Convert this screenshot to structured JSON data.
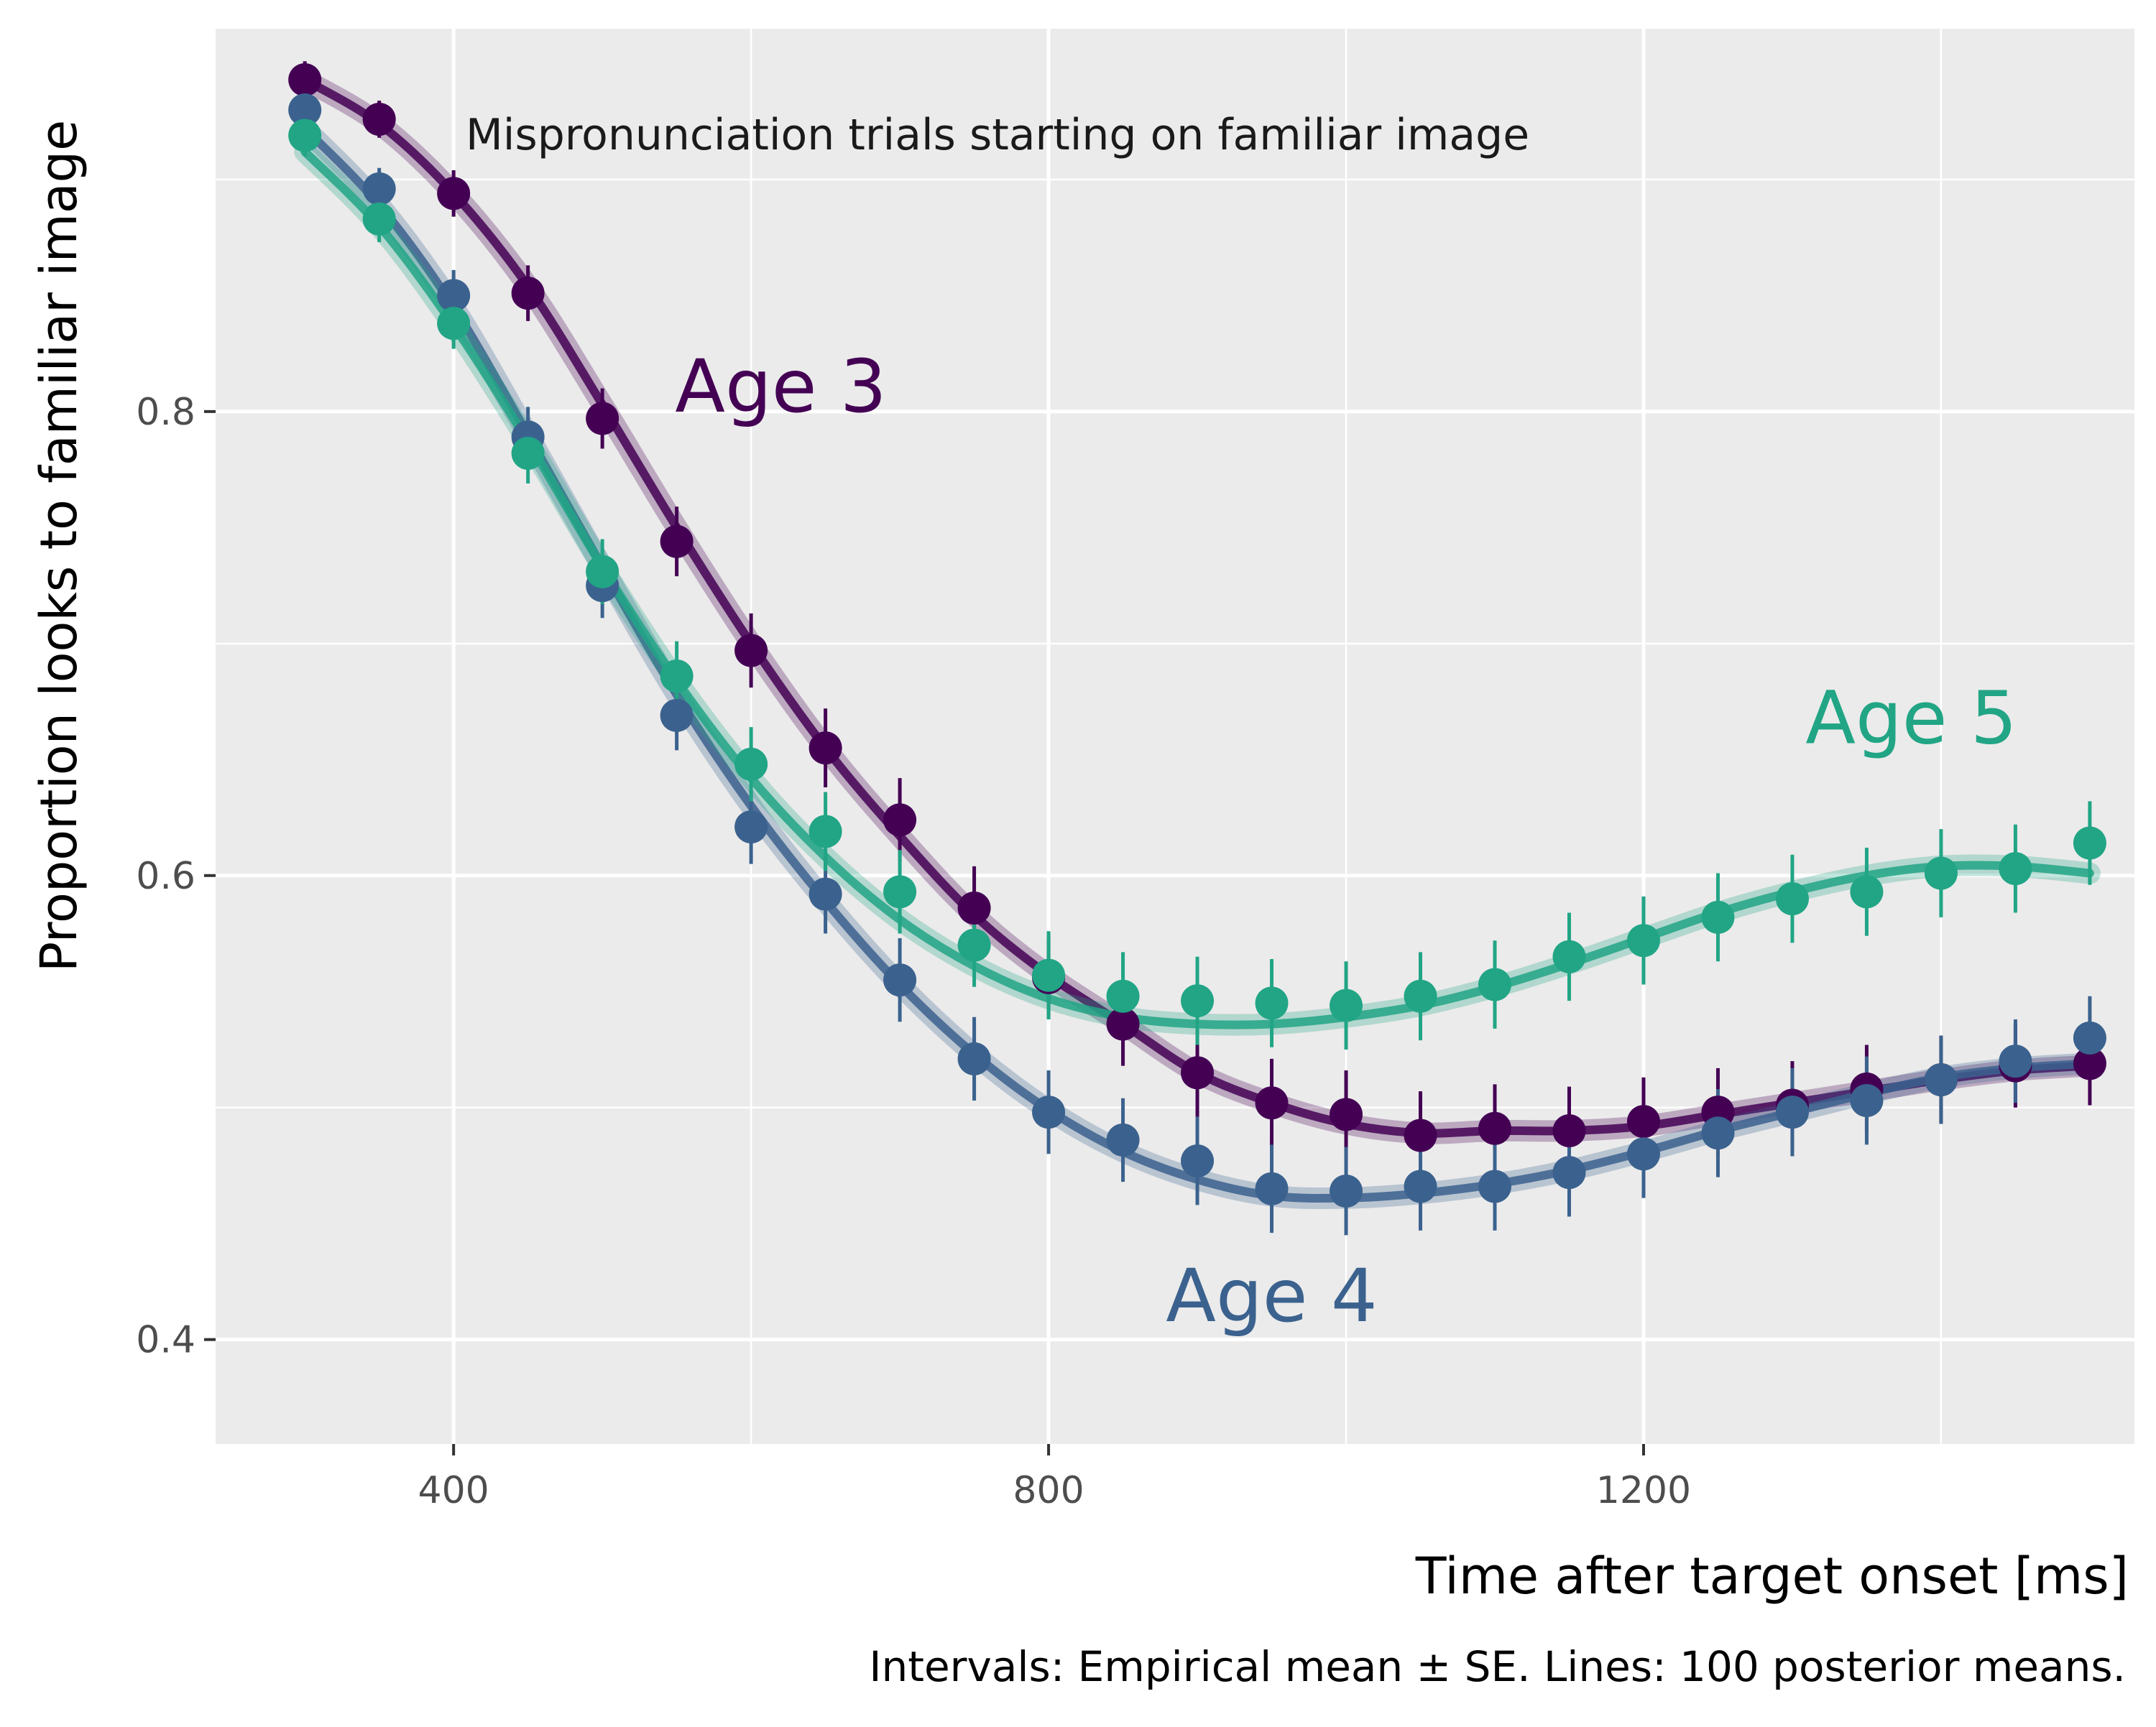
{
  "chart_data": {
    "type": "line",
    "annotation": "Mispronunciation trials starting on familiar image",
    "xlabel": "Time after target onset [ms]",
    "ylabel": "Proportion looks to familiar image",
    "caption": "Intervals: Empirical mean ± SE. Lines: 100 posterior means.",
    "xlim": [
      240,
      1530
    ],
    "ylim": [
      0.355,
      0.965
    ],
    "x_ticks": [
      400,
      800,
      1200
    ],
    "x_tick_labels": [
      "400",
      "800",
      "1200"
    ],
    "y_ticks": [
      0.4,
      0.6,
      0.8
    ],
    "y_tick_labels": [
      "0.4",
      "0.6",
      "0.8"
    ],
    "grid": true,
    "background": "#ebebeb",
    "x": [
      300,
      350,
      400,
      450,
      500,
      550,
      600,
      650,
      700,
      750,
      800,
      850,
      900,
      950,
      1000,
      1050,
      1100,
      1150,
      1200,
      1250,
      1300,
      1350,
      1400,
      1450,
      1500
    ],
    "series": [
      {
        "name": "Age 3",
        "color": "#440154",
        "means": [
          0.943,
          0.926,
          0.894,
          0.851,
          0.797,
          0.744,
          0.697,
          0.655,
          0.624,
          0.586,
          0.556,
          0.536,
          0.515,
          0.502,
          0.497,
          0.488,
          0.491,
          0.49,
          0.494,
          0.498,
          0.501,
          0.508,
          0.512,
          0.518,
          0.519
        ],
        "se": [
          0.008,
          0.008,
          0.01,
          0.012,
          0.013,
          0.015,
          0.016,
          0.017,
          0.018,
          0.018,
          0.017,
          0.018,
          0.019,
          0.019,
          0.019,
          0.019,
          0.019,
          0.019,
          0.019,
          0.019,
          0.019,
          0.019,
          0.019,
          0.018,
          0.018
        ],
        "fit": [
          0.943,
          0.924,
          0.894,
          0.854,
          0.803,
          0.75,
          0.7,
          0.655,
          0.617,
          0.583,
          0.557,
          0.536,
          0.515,
          0.502,
          0.493,
          0.489,
          0.49,
          0.49,
          0.492,
          0.497,
          0.502,
          0.507,
          0.512,
          0.516,
          0.518
        ]
      },
      {
        "name": "Age 4",
        "color": "#3b628e",
        "means": [
          0.93,
          0.896,
          0.85,
          0.789,
          0.725,
          0.669,
          0.621,
          0.592,
          0.555,
          0.521,
          0.498,
          0.486,
          0.477,
          0.465,
          0.464,
          0.466,
          0.466,
          0.472,
          0.48,
          0.489,
          0.498,
          0.503,
          0.512,
          0.52,
          0.53
        ],
        "se": [
          0.01,
          0.009,
          0.011,
          0.013,
          0.014,
          0.015,
          0.016,
          0.017,
          0.018,
          0.018,
          0.018,
          0.018,
          0.019,
          0.019,
          0.019,
          0.019,
          0.019,
          0.019,
          0.019,
          0.019,
          0.019,
          0.019,
          0.019,
          0.018,
          0.018
        ],
        "fit": [
          0.922,
          0.889,
          0.845,
          0.79,
          0.733,
          0.678,
          0.63,
          0.589,
          0.553,
          0.523,
          0.499,
          0.481,
          0.469,
          0.462,
          0.461,
          0.463,
          0.467,
          0.473,
          0.481,
          0.49,
          0.498,
          0.506,
          0.513,
          0.517,
          0.519
        ]
      },
      {
        "name": "Age 5",
        "color": "#21a585",
        "means": [
          0.919,
          0.883,
          0.838,
          0.782,
          0.731,
          0.686,
          0.648,
          0.619,
          0.593,
          0.57,
          0.557,
          0.548,
          0.546,
          0.545,
          0.544,
          0.548,
          0.553,
          0.565,
          0.572,
          0.582,
          0.59,
          0.593,
          0.601,
          0.603,
          0.614
        ],
        "se": [
          0.009,
          0.01,
          0.011,
          0.013,
          0.014,
          0.015,
          0.016,
          0.017,
          0.018,
          0.018,
          0.019,
          0.019,
          0.019,
          0.019,
          0.019,
          0.019,
          0.019,
          0.019,
          0.019,
          0.019,
          0.019,
          0.019,
          0.019,
          0.019,
          0.018
        ],
        "fit": [
          0.912,
          0.88,
          0.837,
          0.787,
          0.733,
          0.684,
          0.642,
          0.608,
          0.581,
          0.561,
          0.547,
          0.539,
          0.536,
          0.536,
          0.539,
          0.544,
          0.552,
          0.562,
          0.573,
          0.584,
          0.593,
          0.6,
          0.604,
          0.604,
          0.601
        ]
      }
    ],
    "series_labels": [
      {
        "text": "Age 3",
        "x": 620,
        "y": 0.8,
        "color": "#440154"
      },
      {
        "text": "Age 4",
        "x": 950,
        "y": 0.408,
        "color": "#3b628e"
      },
      {
        "text": "Age 5",
        "x": 1380,
        "y": 0.657,
        "color": "#21a585"
      }
    ]
  }
}
